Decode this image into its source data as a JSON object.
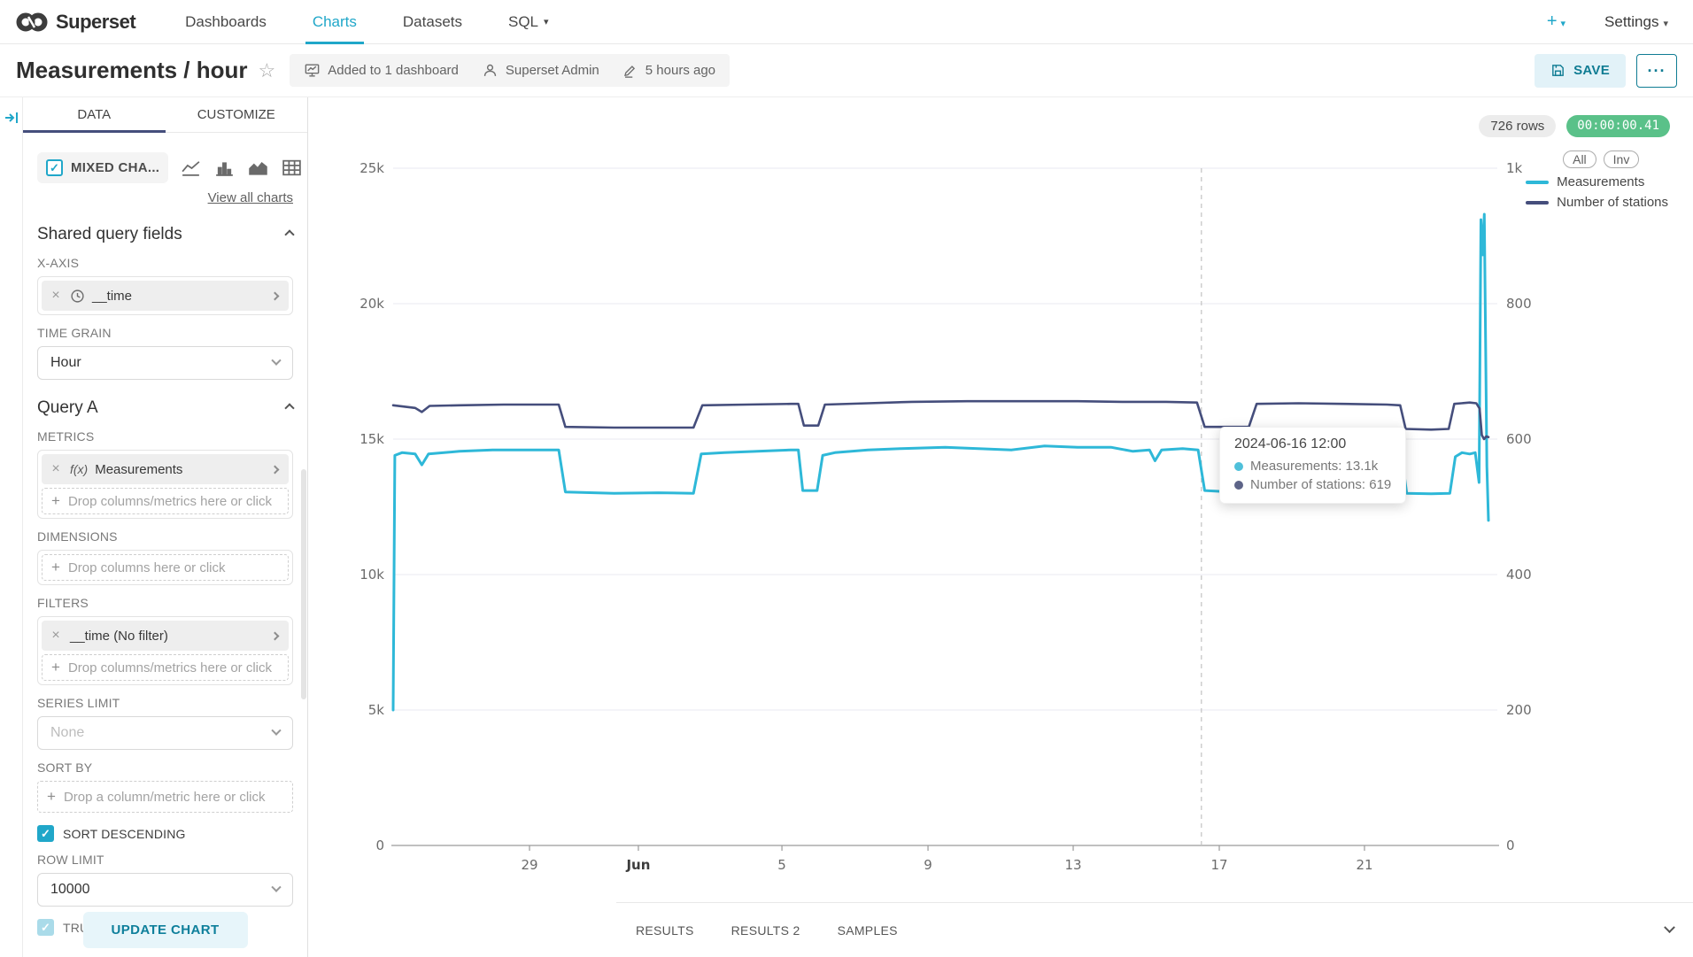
{
  "brand": {
    "name": "Superset"
  },
  "nav": {
    "items": [
      {
        "label": "Dashboards",
        "active": false,
        "caret": false
      },
      {
        "label": "Charts",
        "active": true,
        "caret": false
      },
      {
        "label": "Datasets",
        "active": false,
        "caret": false
      },
      {
        "label": "SQL",
        "active": false,
        "caret": true
      }
    ],
    "plus_label": "+",
    "settings_label": "Settings"
  },
  "header": {
    "title": "Measurements / hour",
    "star_icon": "☆",
    "meta": [
      {
        "icon": "dashboard-icon",
        "label": "Added to 1 dashboard"
      },
      {
        "icon": "user-icon",
        "label": "Superset Admin"
      },
      {
        "icon": "pencil-icon",
        "label": "5 hours ago"
      }
    ],
    "save_label": "SAVE",
    "more_label": "···"
  },
  "panel": {
    "tabs": [
      {
        "label": "DATA",
        "active": true
      },
      {
        "label": "CUSTOMIZE",
        "active": false
      }
    ],
    "viz": {
      "selected": "MIXED CHA...",
      "alt_icons": [
        "line-chart-icon",
        "bar-chart-icon",
        "area-chart-icon",
        "table-icon",
        "4k",
        "pie-chart-icon"
      ],
      "view_all": "View all charts"
    },
    "shared": {
      "title": "Shared query fields",
      "xaxis_label": "X-AXIS",
      "xaxis_value": "__time",
      "time_grain_label": "TIME GRAIN",
      "time_grain_value": "Hour"
    },
    "query_a": {
      "title": "Query A",
      "metrics_label": "METRICS",
      "metric_value": "Measurements",
      "metric_prefix": "f(x)",
      "metrics_placeholder": "Drop columns/metrics here or click",
      "dimensions_label": "DIMENSIONS",
      "dimensions_placeholder": "Drop columns here or click",
      "filters_label": "FILTERS",
      "filter_value": "__time (No filter)",
      "filters_placeholder": "Drop columns/metrics here or click",
      "series_limit_label": "SERIES LIMIT",
      "series_limit_value": "None",
      "sort_by_label": "SORT BY",
      "sort_by_placeholder": "Drop a column/metric here or click",
      "sort_descending_label": "SORT DESCENDING",
      "row_limit_label": "ROW LIMIT",
      "row_limit_value": "10000",
      "truncate_label": "TRUNCATE METRIC"
    },
    "update_button": "UPDATE CHART"
  },
  "chart": {
    "rows_badge": "726 rows",
    "timer_badge": "00:00:00.41",
    "buttons": [
      "All",
      "Inv"
    ],
    "tooltip": {
      "title": "2024-06-16 12:00",
      "items": [
        {
          "color": "#4fc0da",
          "label": "Measurements: 13.1k"
        },
        {
          "color": "#5d6488",
          "label": "Number of stations: 619"
        }
      ]
    }
  },
  "chart_data": {
    "type": "line",
    "title": "Measurements / hour",
    "legend_position": "top-right",
    "grid": true,
    "x_axis": {
      "kind": "time",
      "ticks": [
        {
          "label": "29",
          "f": 0.1235,
          "bold": false
        },
        {
          "label": "Jun",
          "f": 0.2221,
          "bold": true
        },
        {
          "label": "5",
          "f": 0.3521,
          "bold": false
        },
        {
          "label": "9",
          "f": 0.4844,
          "bold": false
        },
        {
          "label": "13",
          "f": 0.6159,
          "bold": false
        },
        {
          "label": "17",
          "f": 0.7482,
          "bold": false
        },
        {
          "label": "21",
          "f": 0.8797,
          "bold": false
        }
      ],
      "hover_f": 0.732,
      "hover_label": "2024-06-16 12:00"
    },
    "y_left": {
      "min": 0,
      "max": 25000,
      "tick_step": 5000,
      "labels": [
        "0",
        "5k",
        "10k",
        "15k",
        "20k",
        "25k"
      ]
    },
    "y_right": {
      "min": 0,
      "max": 1000,
      "tick_step": 200,
      "labels": [
        "0",
        "200",
        "400",
        "600",
        "800",
        "1k"
      ]
    },
    "series": [
      {
        "name": "Measurements",
        "color": "#2eb8d8",
        "axis": "left",
        "width": 3,
        "points": [
          [
            0.0,
            5000
          ],
          [
            0.0015,
            14400
          ],
          [
            0.008,
            14500
          ],
          [
            0.02,
            14450
          ],
          [
            0.026,
            14050
          ],
          [
            0.032,
            14450
          ],
          [
            0.06,
            14550
          ],
          [
            0.09,
            14600
          ],
          [
            0.12,
            14600
          ],
          [
            0.15,
            14600
          ],
          [
            0.156,
            13050
          ],
          [
            0.2,
            13000
          ],
          [
            0.24,
            13020
          ],
          [
            0.272,
            13000
          ],
          [
            0.279,
            14450
          ],
          [
            0.3,
            14500
          ],
          [
            0.33,
            14550
          ],
          [
            0.36,
            14600
          ],
          [
            0.367,
            14600
          ],
          [
            0.371,
            13100
          ],
          [
            0.384,
            13100
          ],
          [
            0.389,
            14400
          ],
          [
            0.4,
            14500
          ],
          [
            0.43,
            14600
          ],
          [
            0.46,
            14650
          ],
          [
            0.5,
            14700
          ],
          [
            0.53,
            14650
          ],
          [
            0.56,
            14600
          ],
          [
            0.59,
            14750
          ],
          [
            0.62,
            14700
          ],
          [
            0.65,
            14700
          ],
          [
            0.67,
            14550
          ],
          [
            0.685,
            14600
          ],
          [
            0.69,
            14200
          ],
          [
            0.696,
            14600
          ],
          [
            0.715,
            14650
          ],
          [
            0.729,
            14600
          ],
          [
            0.735,
            13100
          ],
          [
            0.76,
            13050
          ],
          [
            0.775,
            13050
          ],
          [
            0.781,
            14400
          ],
          [
            0.81,
            14500
          ],
          [
            0.84,
            14450
          ],
          [
            0.87,
            14500
          ],
          [
            0.9,
            14500
          ],
          [
            0.913,
            14500
          ],
          [
            0.918,
            13000
          ],
          [
            0.94,
            12980
          ],
          [
            0.957,
            13000
          ],
          [
            0.962,
            14350
          ],
          [
            0.968,
            14500
          ],
          [
            0.975,
            14450
          ],
          [
            0.98,
            14500
          ],
          [
            0.9835,
            13400
          ],
          [
            0.9852,
            23100
          ],
          [
            0.9868,
            21800
          ],
          [
            0.9882,
            23300
          ],
          [
            0.9905,
            14000
          ],
          [
            0.992,
            12000
          ]
        ]
      },
      {
        "name": "Number of stations",
        "color": "#454e7c",
        "axis": "right",
        "width": 2.6,
        "points": [
          [
            0.0,
            650
          ],
          [
            0.01,
            648
          ],
          [
            0.02,
            646
          ],
          [
            0.026,
            640
          ],
          [
            0.033,
            649
          ],
          [
            0.06,
            650
          ],
          [
            0.1,
            651
          ],
          [
            0.15,
            651
          ],
          [
            0.156,
            618
          ],
          [
            0.2,
            617
          ],
          [
            0.25,
            617
          ],
          [
            0.272,
            617
          ],
          [
            0.28,
            650
          ],
          [
            0.32,
            651
          ],
          [
            0.36,
            652
          ],
          [
            0.367,
            652
          ],
          [
            0.372,
            620
          ],
          [
            0.385,
            620
          ],
          [
            0.391,
            651
          ],
          [
            0.43,
            653
          ],
          [
            0.47,
            655
          ],
          [
            0.52,
            656
          ],
          [
            0.57,
            656
          ],
          [
            0.62,
            656
          ],
          [
            0.66,
            655
          ],
          [
            0.7,
            655
          ],
          [
            0.728,
            654
          ],
          [
            0.735,
            618
          ],
          [
            0.775,
            618
          ],
          [
            0.782,
            652
          ],
          [
            0.82,
            653
          ],
          [
            0.86,
            652
          ],
          [
            0.9,
            651
          ],
          [
            0.912,
            650
          ],
          [
            0.917,
            615
          ],
          [
            0.94,
            614
          ],
          [
            0.956,
            615
          ],
          [
            0.961,
            652
          ],
          [
            0.975,
            654
          ],
          [
            0.981,
            653
          ],
          [
            0.984,
            645
          ],
          [
            0.986,
            606
          ],
          [
            0.988,
            600
          ],
          [
            0.99,
            604
          ],
          [
            0.992,
            603
          ]
        ]
      }
    ]
  },
  "results": {
    "tabs": [
      "RESULTS",
      "RESULTS 2",
      "SAMPLES"
    ]
  }
}
